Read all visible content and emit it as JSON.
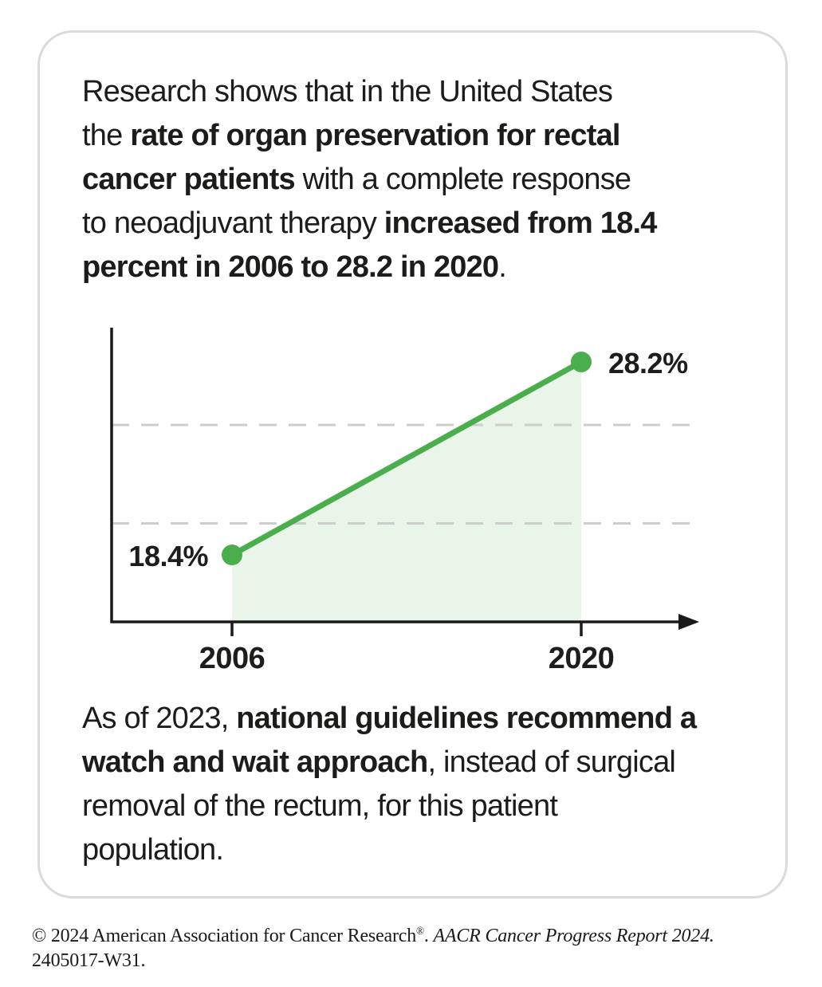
{
  "intro": {
    "lines": [
      [
        {
          "t": "Research shows that in the United States"
        }
      ],
      [
        {
          "t": "the "
        },
        {
          "t": "rate of organ preservation for rectal",
          "b": true
        }
      ],
      [
        {
          "t": "cancer patients",
          "b": true
        },
        {
          "t": " with a complete response"
        }
      ],
      [
        {
          "t": "to neoadjuvant therapy "
        },
        {
          "t": "increased from 18.4",
          "b": true
        }
      ],
      [
        {
          "t": "percent in 2006 to 28.2 in 2020",
          "b": true
        },
        {
          "t": "."
        }
      ]
    ]
  },
  "outro": {
    "lines": [
      [
        {
          "t": "As of 2023, "
        },
        {
          "t": "national guidelines recommend a",
          "b": true
        }
      ],
      [
        {
          "t": "watch and wait approach",
          "b": true
        },
        {
          "t": ", instead of surgical"
        }
      ],
      [
        {
          "t": "removal of the rectum, for this patient"
        }
      ],
      [
        {
          "t": "population."
        }
      ]
    ]
  },
  "footer": {
    "line1": [
      {
        "t": "© 2024 American Association for Cancer Research"
      },
      {
        "t": "®",
        "sup": true
      },
      {
        "t": ". "
      },
      {
        "t": "AACR Cancer Progress Report 2024.",
        "i": true
      }
    ],
    "line2": "2405017-W31."
  },
  "chart_data": {
    "type": "line",
    "x": [
      2006,
      2020
    ],
    "categories": [
      "2006",
      "2020"
    ],
    "series": [
      {
        "name": "Rate of organ preservation (%)",
        "values": [
          18.4,
          28.2
        ]
      }
    ],
    "point_labels": [
      "18.4%",
      "28.2%"
    ],
    "x_tick_labels": [
      "2006",
      "2020"
    ],
    "gridlines_y": [
      20,
      25
    ],
    "ylim": [
      15,
      30
    ],
    "grid": "dashed-horizontal",
    "legend": false,
    "area_fill": true,
    "colors": {
      "line": "#4aae4d",
      "fill": "#e9f5e9",
      "grid": "#cdcdcd",
      "axis": "#1a1a1a",
      "label": "#1d1d1b"
    }
  }
}
